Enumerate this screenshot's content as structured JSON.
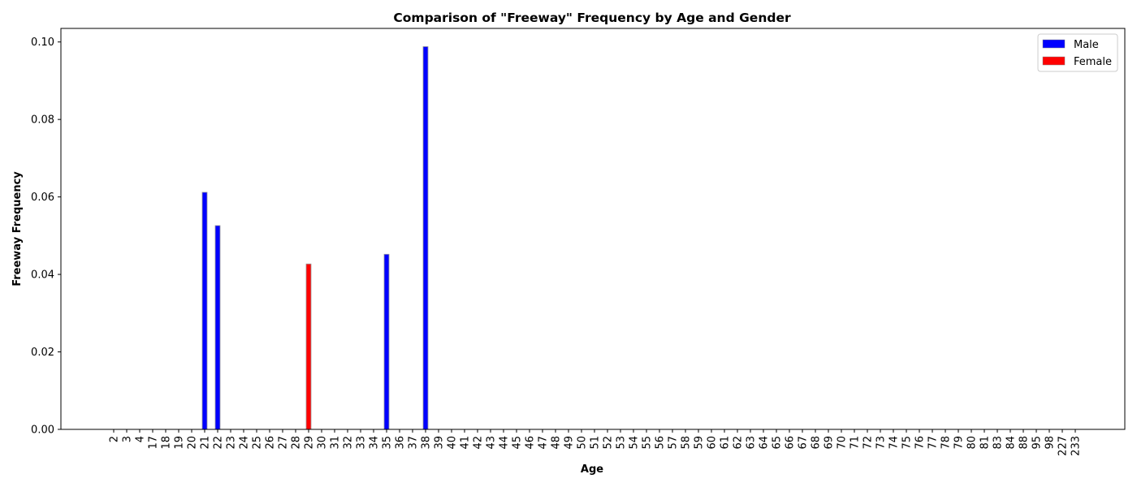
{
  "chart_data": {
    "type": "bar",
    "title": "Comparison of \"Freeway\" Frequency by Age and Gender",
    "xlabel": "Age",
    "ylabel": "Freeway Frequency",
    "ylim": [
      0,
      0.1035
    ],
    "yticks": [
      "0.00",
      "0.02",
      "0.04",
      "0.06",
      "0.08",
      "0.10"
    ],
    "grid": false,
    "legend_position": "top-right",
    "categories": [
      "2",
      "3",
      "4",
      "17",
      "18",
      "19",
      "20",
      "21",
      "22",
      "23",
      "24",
      "25",
      "26",
      "27",
      "28",
      "29",
      "30",
      "31",
      "32",
      "33",
      "34",
      "35",
      "36",
      "37",
      "38",
      "39",
      "40",
      "41",
      "42",
      "43",
      "44",
      "45",
      "46",
      "47",
      "48",
      "49",
      "50",
      "51",
      "52",
      "53",
      "54",
      "55",
      "56",
      "57",
      "58",
      "59",
      "60",
      "61",
      "62",
      "63",
      "64",
      "65",
      "66",
      "67",
      "68",
      "69",
      "70",
      "71",
      "72",
      "73",
      "74",
      "75",
      "76",
      "77",
      "78",
      "79",
      "80",
      "81",
      "83",
      "84",
      "88",
      "95",
      "98",
      "227",
      "233"
    ],
    "series": [
      {
        "name": "Male",
        "color": "#0000ff",
        "points": [
          {
            "x": "21",
            "value": 0.0612
          },
          {
            "x": "22",
            "value": 0.0526
          },
          {
            "x": "35",
            "value": 0.0452
          },
          {
            "x": "38",
            "value": 0.0988
          }
        ]
      },
      {
        "name": "Female",
        "color": "#ff0000",
        "points": [
          {
            "x": "29",
            "value": 0.0427
          }
        ]
      }
    ]
  }
}
